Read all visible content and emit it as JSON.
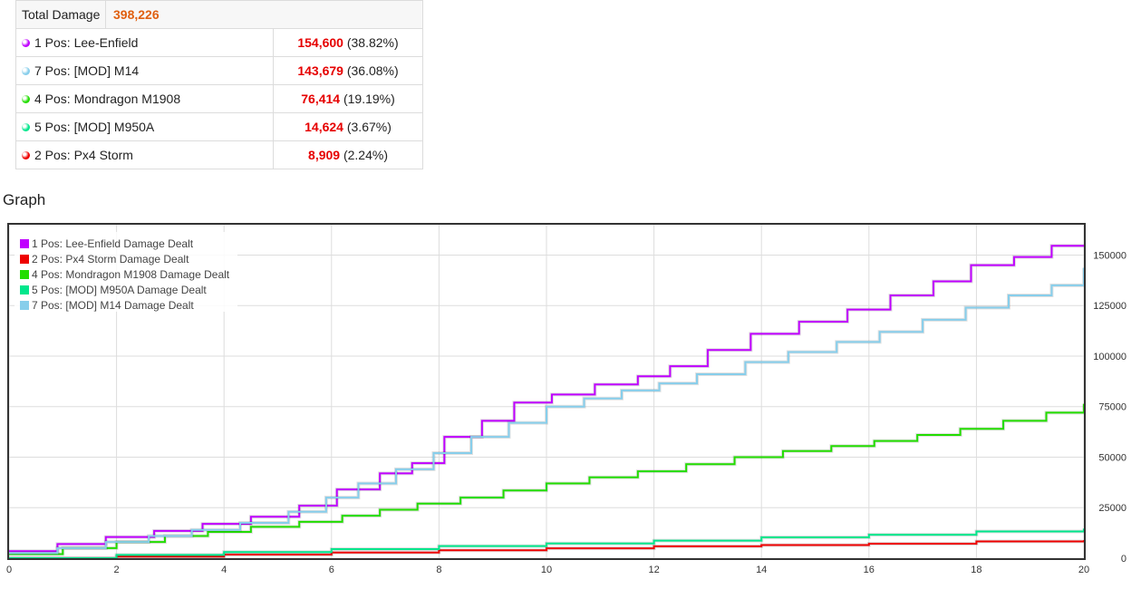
{
  "summary": {
    "total_label": "Total Damage",
    "total_value": "398,226",
    "rows": [
      {
        "label": "1 Pos: Lee-Enfield",
        "value": "154,600",
        "pct": "(38.82%)",
        "color": "#c000ff"
      },
      {
        "label": "7 Pos: [MOD] M14",
        "value": "143,679",
        "pct": "(36.08%)",
        "color": "#87ceeb"
      },
      {
        "label": "4 Pos: Mondragon M1908",
        "value": "76,414",
        "pct": "(19.19%)",
        "color": "#22dd00"
      },
      {
        "label": "5 Pos: [MOD] M950A",
        "value": "14,624",
        "pct": "(3.67%)",
        "color": "#00e68c"
      },
      {
        "label": "2 Pos: Px4 Storm",
        "value": "8,909",
        "pct": "(2.24%)",
        "color": "#ee0000"
      }
    ]
  },
  "section_title": "Graph",
  "chart_data": {
    "type": "line",
    "step": true,
    "xlim": [
      0,
      20
    ],
    "ylim": [
      0,
      165000
    ],
    "x_ticks": [
      0,
      2,
      4,
      6,
      8,
      10,
      12,
      14,
      16,
      18,
      20
    ],
    "y_ticks": [
      0,
      25000,
      50000,
      75000,
      100000,
      125000,
      150000
    ],
    "y_tick_labels": [
      "0",
      "25000",
      "50000",
      "75000",
      "100000",
      "125000",
      "150000"
    ],
    "grid": true,
    "legend_position": "top-left",
    "series": [
      {
        "name": "1 Pos: Lee-Enfield Damage Dealt",
        "color": "#c000ff",
        "x": [
          0,
          0.9,
          1.8,
          2.7,
          3.6,
          4.5,
          5.4,
          6.1,
          6.9,
          7.5,
          8.1,
          8.8,
          9.4,
          10.1,
          10.9,
          11.7,
          12.3,
          13.0,
          13.8,
          14.7,
          15.6,
          16.4,
          17.2,
          17.9,
          18.7,
          19.4,
          20
        ],
        "y": [
          3500,
          7000,
          10500,
          13500,
          17000,
          20500,
          26000,
          34000,
          42000,
          47000,
          60000,
          68000,
          77000,
          81000,
          86000,
          90000,
          95000,
          103000,
          111000,
          117000,
          123000,
          130000,
          137000,
          145000,
          149000,
          154600,
          154600
        ]
      },
      {
        "name": "2 Pos: Px4 Storm Damage Dealt",
        "color": "#ee0000",
        "x": [
          0,
          2,
          4,
          6,
          8,
          10,
          12,
          14,
          16,
          18,
          20
        ],
        "y": [
          0,
          800,
          1800,
          2800,
          3900,
          4900,
          5900,
          6500,
          7200,
          8300,
          8909
        ]
      },
      {
        "name": "4 Pos: Mondragon M1908 Damage Dealt",
        "color": "#22dd00",
        "x": [
          0,
          1.0,
          2.0,
          2.9,
          3.7,
          4.5,
          5.4,
          6.2,
          6.9,
          7.6,
          8.4,
          9.2,
          10.0,
          10.8,
          11.7,
          12.6,
          13.5,
          14.4,
          15.3,
          16.1,
          16.9,
          17.7,
          18.5,
          19.3,
          20
        ],
        "y": [
          2000,
          5000,
          8000,
          11000,
          13000,
          15500,
          18000,
          21000,
          24000,
          27000,
          30000,
          33500,
          37000,
          40000,
          43000,
          46500,
          50000,
          53000,
          55500,
          58000,
          61000,
          64000,
          68000,
          72000,
          76414
        ]
      },
      {
        "name": "5 Pos: [MOD] M950A Damage Dealt",
        "color": "#00e68c",
        "x": [
          0,
          2,
          4,
          6,
          8,
          10,
          12,
          14,
          16,
          18,
          20
        ],
        "y": [
          0,
          1600,
          3000,
          4500,
          6000,
          7300,
          8700,
          10300,
          11600,
          13200,
          14624
        ]
      },
      {
        "name": "7 Pos: [MOD] M14 Damage Dealt",
        "color": "#87ceeb",
        "x": [
          0,
          0.9,
          1.8,
          2.6,
          3.4,
          4.3,
          5.2,
          5.9,
          6.5,
          7.2,
          7.9,
          8.6,
          9.3,
          10.0,
          10.7,
          11.4,
          12.1,
          12.8,
          13.7,
          14.5,
          15.4,
          16.2,
          17.0,
          17.8,
          18.6,
          19.4,
          20
        ],
        "y": [
          2500,
          5000,
          8000,
          11000,
          14000,
          17500,
          23000,
          30000,
          37000,
          44000,
          52000,
          60000,
          67000,
          75000,
          79000,
          83000,
          86500,
          91000,
          97000,
          102000,
          107000,
          112000,
          118000,
          124000,
          130000,
          135000,
          143679
        ]
      }
    ]
  }
}
